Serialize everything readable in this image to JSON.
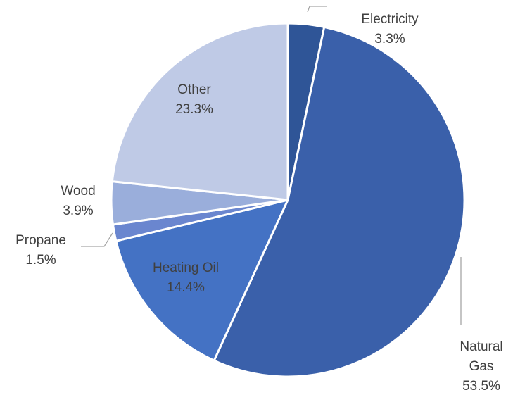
{
  "chart_data": {
    "type": "pie",
    "start_angle_deg": 0,
    "direction": "clockwise",
    "slices": [
      {
        "label": "Electricity",
        "value": 3.3,
        "value_label": "3.3%",
        "color": "#2f5597"
      },
      {
        "label": "Natural Gas",
        "label_lines": [
          "Natural",
          "Gas"
        ],
        "value": 53.5,
        "value_label": "53.5%",
        "color": "#3a60aa"
      },
      {
        "label": "Heating Oil",
        "value": 14.4,
        "value_label": "14.4%",
        "color": "#4472c4"
      },
      {
        "label": "Propane",
        "value": 1.5,
        "value_label": "1.5%",
        "color": "#6a86cf"
      },
      {
        "label": "Wood",
        "value": 3.9,
        "value_label": "3.9%",
        "color": "#9aaedb"
      },
      {
        "label": "Other",
        "value": 23.3,
        "value_label": "23.3%",
        "color": "#bfcae6"
      }
    ],
    "legend": "none",
    "data_labels": "outside with leader lines for small slices"
  }
}
